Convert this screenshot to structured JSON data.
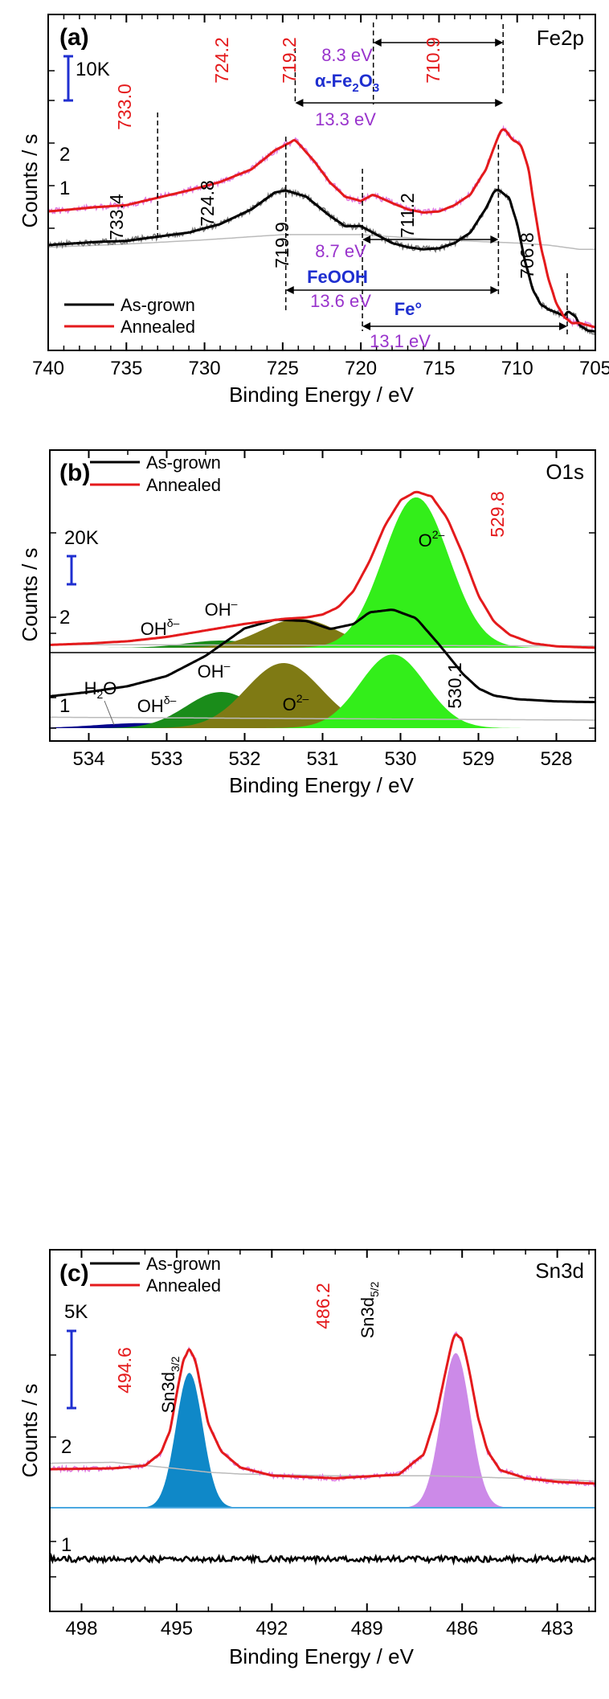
{
  "colors": {
    "as_grown": "#000000",
    "annealed": "#e41a1c",
    "raw_data": "#e07ae0",
    "background": "#bbbbbb",
    "scale_bar": "#1f2fd0",
    "purple_label": "#9933cc",
    "blue_label": "#1f2fd0",
    "O2_fill": "#33ee1a",
    "OH_fill": "#7f7a14",
    "OHd_fill": "#1a8c1a",
    "H2O_fill": "#06068c",
    "Sn32_fill": "#0f88c8",
    "Sn52_fill": "#cc8ae8"
  },
  "chart_data": [
    {
      "type": "line",
      "panel_label": "(a)",
      "element_label": "Fe2p",
      "xlabel": "Binding Energy / eV",
      "ylabel": "Counts / s",
      "xlim": [
        740,
        705
      ],
      "x_ticks": [
        740,
        735,
        730,
        725,
        720,
        715,
        710,
        705
      ],
      "scale_bar": "10K",
      "series": [
        {
          "name": "As-grown",
          "curve_label": "1",
          "x": [
            740,
            737,
            735,
            733,
            731,
            729,
            727,
            725.5,
            724.8,
            723.5,
            722,
            721,
            720,
            719,
            718,
            717,
            716,
            715,
            714,
            713,
            712,
            711.5,
            711.2,
            710.5,
            710,
            709.5,
            709,
            708.5,
            708,
            707.5,
            707,
            706.8,
            706.3,
            706,
            705.5,
            705
          ],
          "y": [
            100,
            103,
            104,
            108,
            112,
            120,
            134,
            150,
            152,
            146,
            128,
            118,
            118,
            110,
            102,
            98,
            96,
            97,
            102,
            112,
            135,
            150,
            153,
            144,
            120,
            85,
            58,
            44,
            39,
            36,
            33,
            37,
            33,
            24,
            19,
            18
          ]
        },
        {
          "name": "Annealed",
          "curve_label": "2",
          "x": [
            740,
            737,
            735,
            733,
            731,
            729,
            727,
            725.5,
            724.2,
            723,
            722,
            721,
            720,
            719.2,
            718,
            717,
            716,
            715,
            714,
            713,
            712,
            711.3,
            710.9,
            710.3,
            709.8,
            709.3,
            709,
            708.5,
            708,
            707.5,
            707,
            706.5,
            706,
            705.5,
            705
          ],
          "y": [
            132,
            136,
            138,
            145,
            152,
            160,
            172,
            190,
            200,
            180,
            160,
            146,
            142,
            148,
            140,
            134,
            131,
            132,
            138,
            148,
            172,
            200,
            212,
            200,
            196,
            175,
            145,
            100,
            68,
            45,
            32,
            26,
            26,
            24,
            22
          ]
        },
        {
          "name": "",
          "curve_label": "",
          "x": [
            740,
            735,
            730,
            725,
            720,
            715,
            710,
            709,
            708,
            707,
            706,
            705
          ],
          "y": [
            98,
            101,
            105,
            110,
            110,
            105,
            102,
            101,
            100,
            98,
            96,
            96
          ]
        }
      ],
      "peak_labels": [
        {
          "text": "733.0",
          "series": "Annealed"
        },
        {
          "text": "724.2",
          "series": "Annealed"
        },
        {
          "text": "719.2",
          "series": "Annealed"
        },
        {
          "text": "710.9",
          "series": "Annealed"
        },
        {
          "text": "733.4",
          "series": "As-grown"
        },
        {
          "text": "724.8",
          "series": "As-grown"
        },
        {
          "text": "719.9",
          "series": "As-grown"
        },
        {
          "text": "711.2",
          "series": "As-grown"
        },
        {
          "text": "706.8",
          "series": "As-grown"
        }
      ],
      "annotations": [
        {
          "text": "8.3 eV",
          "from": 719.2,
          "to": 710.9
        },
        {
          "text": "α-Fe2O3"
        },
        {
          "text": "13.3 eV",
          "from": 724.2,
          "to": 710.9
        },
        {
          "text": "8.7 eV",
          "from": 719.9,
          "to": 711.2
        },
        {
          "text": "FeOOH"
        },
        {
          "text": "13.6 eV",
          "from": 724.8,
          "to": 711.2
        },
        {
          "text": "Fe°"
        },
        {
          "text": "13.1 eV",
          "from": 719.9,
          "to": 706.8
        }
      ],
      "legend": [
        "As-grown",
        "Annealed"
      ],
      "legend_position": "bottom-left"
    },
    {
      "type": "area",
      "panel_label": "(b)",
      "element_label": "O1s",
      "xlabel": "Binding Energy / eV",
      "ylabel": "Counts / s",
      "xlim": [
        534.5,
        527.5
      ],
      "x_ticks": [
        534,
        533,
        532,
        531,
        530,
        529,
        528
      ],
      "scale_bar": "20K",
      "series": [
        {
          "name": "As-grown",
          "curve_label": "1",
          "x": [
            534.5,
            534,
            533.5,
            533,
            532.5,
            532,
            531.6,
            531.2,
            530.9,
            530.6,
            530.4,
            530.1,
            529.8,
            529.5,
            529.2,
            529,
            528.8,
            528.5,
            528,
            527.5
          ],
          "y": [
            44,
            50,
            58,
            72,
            100,
            138,
            150,
            148,
            137,
            144,
            160,
            164,
            152,
            115,
            75,
            55,
            45,
            40,
            37,
            36
          ]
        },
        {
          "name": "Annealed",
          "curve_label": "2",
          "x": [
            534.5,
            534,
            533.5,
            533,
            532.5,
            532,
            531.5,
            531.2,
            531,
            530.8,
            530.6,
            530.4,
            530.2,
            530,
            529.8,
            529.6,
            529.4,
            529.2,
            529,
            528.8,
            528.6,
            528.3,
            528,
            527.5
          ],
          "y": [
            210,
            212,
            215,
            221,
            230,
            239,
            246,
            248,
            252,
            262,
            285,
            325,
            375,
            410,
            422,
            415,
            385,
            335,
            278,
            242,
            224,
            212,
            208,
            206
          ]
        },
        {
          "name": "",
          "curve_label": "",
          "x": [
            534.5,
            527.5
          ],
          "y": [
            48,
            44
          ]
        },
        {
          "name": "",
          "curve_label": "",
          "x": [
            534.5,
            527.5
          ],
          "y": [
            206,
            204
          ]
        }
      ],
      "components": [
        {
          "label": "H2O",
          "series": "As-grown",
          "center": 533.3,
          "height": 7
        },
        {
          "label": "OHδ–",
          "series": "As-grown",
          "center": 532.3,
          "height": 50
        },
        {
          "label": "OH–",
          "series": "As-grown",
          "center": 531.5,
          "height": 90
        },
        {
          "label": "O2–",
          "series": "As-grown",
          "center": 530.1,
          "height": 102
        },
        {
          "label": "OHδ–",
          "series": "Annealed",
          "center": 532.3,
          "height": 10
        },
        {
          "label": "OH–",
          "series": "Annealed",
          "center": 531.3,
          "height": 40
        },
        {
          "label": "O2–",
          "series": "Annealed",
          "center": 529.8,
          "height": 208
        }
      ],
      "peak_labels": [
        {
          "text": "529.8",
          "series": "Annealed"
        },
        {
          "text": "530.1",
          "series": "As-grown"
        }
      ],
      "legend": [
        "As-grown",
        "Annealed"
      ],
      "legend_position": "top-left"
    },
    {
      "type": "area",
      "panel_label": "(c)",
      "element_label": "Sn3d",
      "xlabel": "Binding Energy / eV",
      "ylabel": "Counts / s",
      "xlim": [
        499,
        481.8
      ],
      "x_ticks": [
        498,
        495,
        492,
        489,
        486,
        483
      ],
      "scale_bar": "5K",
      "series": [
        {
          "name": "As-grown",
          "curve_label": "1",
          "x": [
            499,
            481.8
          ],
          "y": [
            33,
            33
          ]
        },
        {
          "name": "Annealed",
          "curve_label": "2",
          "x": [
            499,
            497,
            496,
            495.5,
            495.2,
            495,
            494.8,
            494.6,
            494.4,
            494.2,
            494,
            493.6,
            493,
            492,
            490,
            488,
            487.2,
            486.8,
            486.5,
            486.3,
            486.2,
            486,
            485.8,
            485.5,
            485.2,
            484.8,
            484,
            483,
            481.8
          ],
          "y": [
            138,
            139,
            142,
            156,
            182,
            222,
            258,
            272,
            258,
            222,
            188,
            158,
            140,
            131,
            128,
            132,
            155,
            200,
            250,
            282,
            288,
            282,
            252,
            196,
            158,
            137,
            128,
            124,
            122
          ]
        },
        {
          "name": "",
          "curve_label": "",
          "x": [
            499,
            497,
            495,
            494,
            493,
            490,
            487,
            485,
            483,
            481.8
          ],
          "y": [
            138,
            139,
            132,
            128,
            126,
            124,
            124,
            122,
            120,
            118
          ]
        }
      ],
      "components": [
        {
          "label": "Sn3d3/2",
          "center": 494.6,
          "height": 150
        },
        {
          "label": "Sn3d5/2",
          "center": 486.2,
          "height": 172
        }
      ],
      "peak_labels": [
        {
          "text": "494.6",
          "series": "Annealed"
        },
        {
          "text": "486.2",
          "series": "Annealed"
        }
      ],
      "legend": [
        "As-grown",
        "Annealed"
      ],
      "legend_position": "top-left"
    }
  ]
}
